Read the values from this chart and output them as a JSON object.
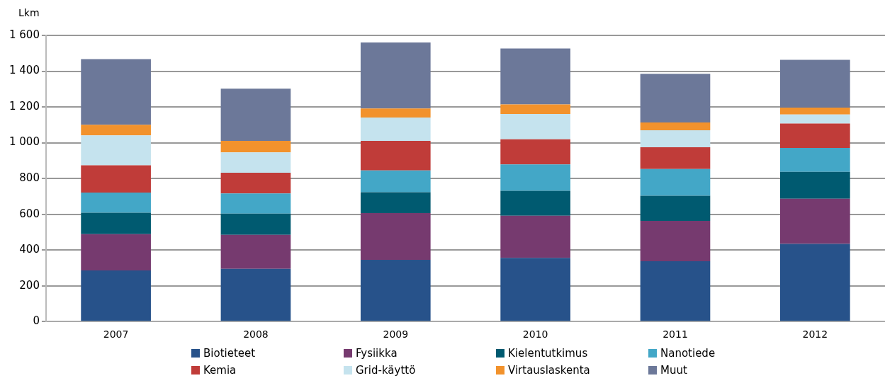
{
  "chart_data": {
    "type": "bar",
    "stacked": true,
    "ylabel": "Lkm",
    "categories": [
      "2007",
      "2008",
      "2009",
      "2010",
      "2011",
      "2012"
    ],
    "ylim": [
      0,
      1600
    ],
    "yticks": [
      {
        "value": 0,
        "label": "0"
      },
      {
        "value": 200,
        "label": "200"
      },
      {
        "value": 400,
        "label": "400"
      },
      {
        "value": 600,
        "label": "600"
      },
      {
        "value": 800,
        "label": "800"
      },
      {
        "value": 1000,
        "label": "1 000"
      },
      {
        "value": 1200,
        "label": "1 200"
      },
      {
        "value": 1400,
        "label": "1 400"
      },
      {
        "value": 1600,
        "label": "1 600"
      }
    ],
    "grid": "y",
    "legend": "bottom",
    "series": [
      {
        "name": "Biotieteet",
        "color": "#27528a",
        "values": [
          286,
          295,
          345,
          356,
          337,
          434
        ]
      },
      {
        "name": "Fysiikka",
        "color": "#763a6f",
        "values": [
          203,
          190,
          261,
          236,
          226,
          253
        ]
      },
      {
        "name": "Kielentutkimus",
        "color": "#005a70",
        "values": [
          119,
          118,
          117,
          139,
          140,
          150
        ]
      },
      {
        "name": "Nanotiede",
        "color": "#43a7c7",
        "values": [
          113,
          113,
          122,
          148,
          150,
          134
        ]
      },
      {
        "name": "Kemia",
        "color": "#c03c39",
        "values": [
          153,
          116,
          165,
          140,
          122,
          136
        ]
      },
      {
        "name": "Grid-käyttö",
        "color": "#c5e3ee",
        "values": [
          167,
          114,
          131,
          142,
          95,
          51
        ]
      },
      {
        "name": "Virtauslaskenta",
        "color": "#f2922c",
        "values": [
          59,
          64,
          50,
          53,
          43,
          38
        ]
      },
      {
        "name": "Muut",
        "color": "#6c7899",
        "values": [
          367,
          292,
          369,
          313,
          272,
          267
        ]
      }
    ]
  }
}
